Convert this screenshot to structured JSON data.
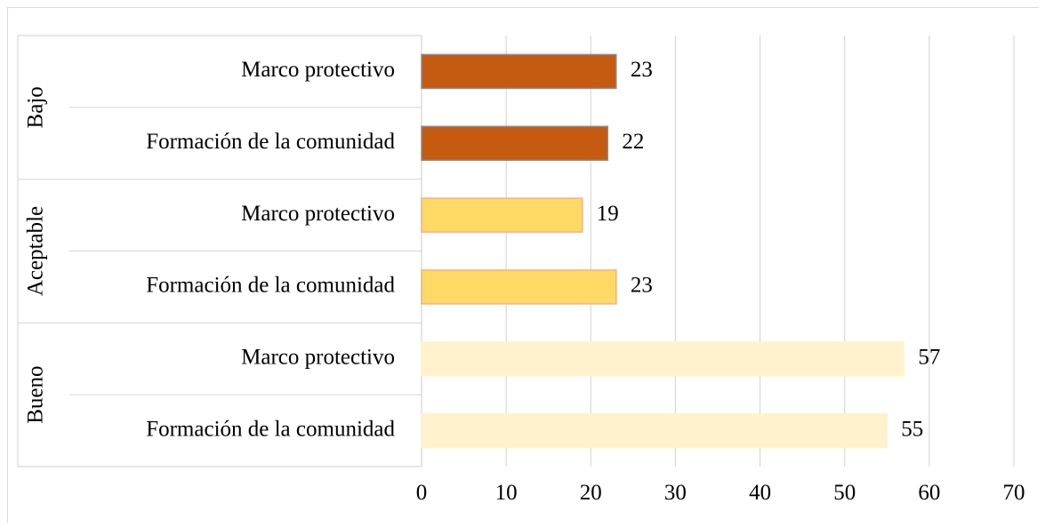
{
  "chart_data": {
    "type": "bar",
    "orientation": "horizontal",
    "title": "",
    "xlabel": "",
    "ylabel": "",
    "xlim": [
      0,
      70
    ],
    "x_ticks": [
      0,
      10,
      20,
      30,
      40,
      50,
      60,
      70
    ],
    "grid": "vertical",
    "legend": "none",
    "data_labels": true,
    "groups": [
      {
        "name": "Bajo",
        "color": "#C55A11",
        "border": "#8c8c8c",
        "bars": [
          {
            "label": "Marco protectivo",
            "value": 23
          },
          {
            "label": "Formación de la comunidad",
            "value": 22
          }
        ]
      },
      {
        "name": "Aceptable",
        "color": "#FFD966",
        "border": "#f4b183",
        "bars": [
          {
            "label": "Marco protectivo",
            "value": 19
          },
          {
            "label": "Formación de la comunidad",
            "value": 23
          }
        ]
      },
      {
        "name": "Bueno",
        "color": "#FFF2CC",
        "border": "#fff2cc",
        "bars": [
          {
            "label": "Marco protectivo",
            "value": 57
          },
          {
            "label": "Formación de la comunidad",
            "value": 55
          }
        ]
      }
    ]
  }
}
